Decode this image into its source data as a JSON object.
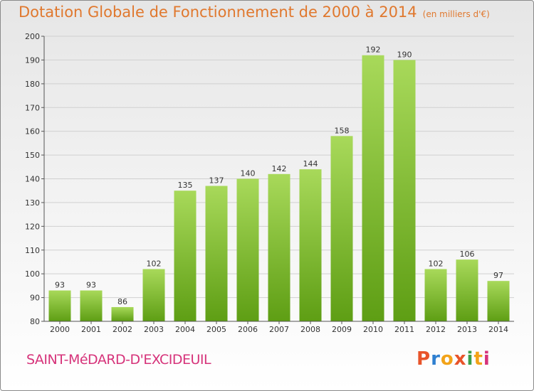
{
  "title": "Dotation Globale de Fonctionnement de 2000 à 2014",
  "unit_label": "(en milliers d'€)",
  "commune": "SAINT-MéDARD-D'EXCIDEUIL",
  "logo": {
    "text": "Proxiti",
    "colors": [
      "#e8542a",
      "#2e7fd0",
      "#f2a318",
      "#e8542a",
      "#3aa04a",
      "#f2a318",
      "#d6337a"
    ]
  },
  "colors": {
    "bar_top": "#a8d95a",
    "bar_bottom": "#5e9e14",
    "title": "#e0782e",
    "commune": "#d6337a"
  },
  "chart_data": {
    "type": "bar",
    "title": "Dotation Globale de Fonctionnement de 2000 à 2014",
    "xlabel": "",
    "ylabel": "",
    "ylim": [
      80,
      200
    ],
    "yticks": [
      80,
      90,
      100,
      110,
      120,
      130,
      140,
      150,
      160,
      170,
      180,
      190,
      200
    ],
    "grid": true,
    "categories": [
      "2000",
      "2001",
      "2002",
      "2003",
      "2004",
      "2005",
      "2006",
      "2007",
      "2008",
      "2009",
      "2010",
      "2011",
      "2012",
      "2013",
      "2014"
    ],
    "values": [
      93,
      93,
      86,
      102,
      135,
      137,
      140,
      142,
      144,
      158,
      192,
      190,
      102,
      106,
      97
    ]
  }
}
